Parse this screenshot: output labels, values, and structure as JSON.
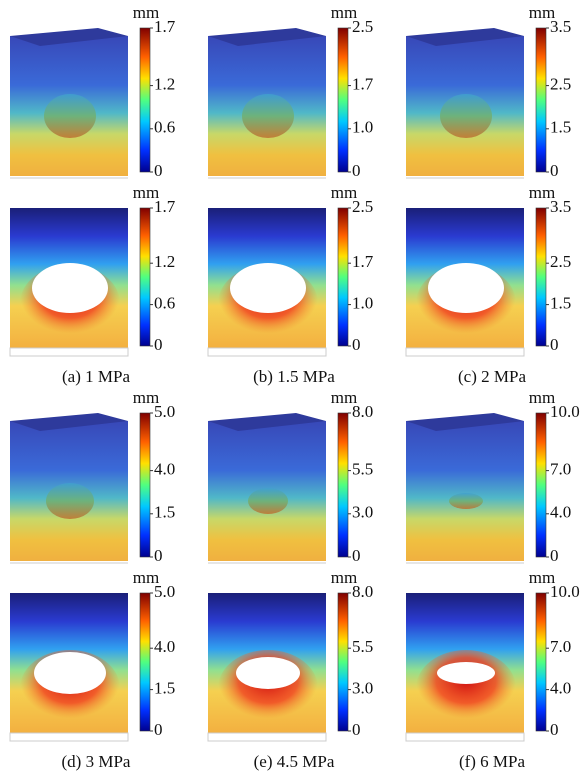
{
  "panels": [
    {
      "caption": "(a) 1 MPa",
      "unit": "mm",
      "ticks": [
        "0",
        "0.6",
        "1.2",
        "1.7"
      ]
    },
    {
      "caption": "(b) 1.5 MPa",
      "unit": "mm",
      "ticks": [
        "0",
        "1.0",
        "1.7",
        "2.5"
      ]
    },
    {
      "caption": "(c) 2 MPa",
      "unit": "mm",
      "ticks": [
        "0",
        "1.5",
        "2.5",
        "3.5"
      ]
    },
    {
      "caption": "(d) 3 MPa",
      "unit": "mm",
      "ticks": [
        "0",
        "1.5",
        "4.0",
        "5.0"
      ]
    },
    {
      "caption": "(e) 4.5 MPa",
      "unit": "mm",
      "ticks": [
        "0",
        "3.0",
        "5.5",
        "8.0"
      ]
    },
    {
      "caption": "(f) 6 MPa",
      "unit": "mm",
      "ticks": [
        "0",
        "4.0",
        "7.0",
        "10.0"
      ]
    }
  ]
}
